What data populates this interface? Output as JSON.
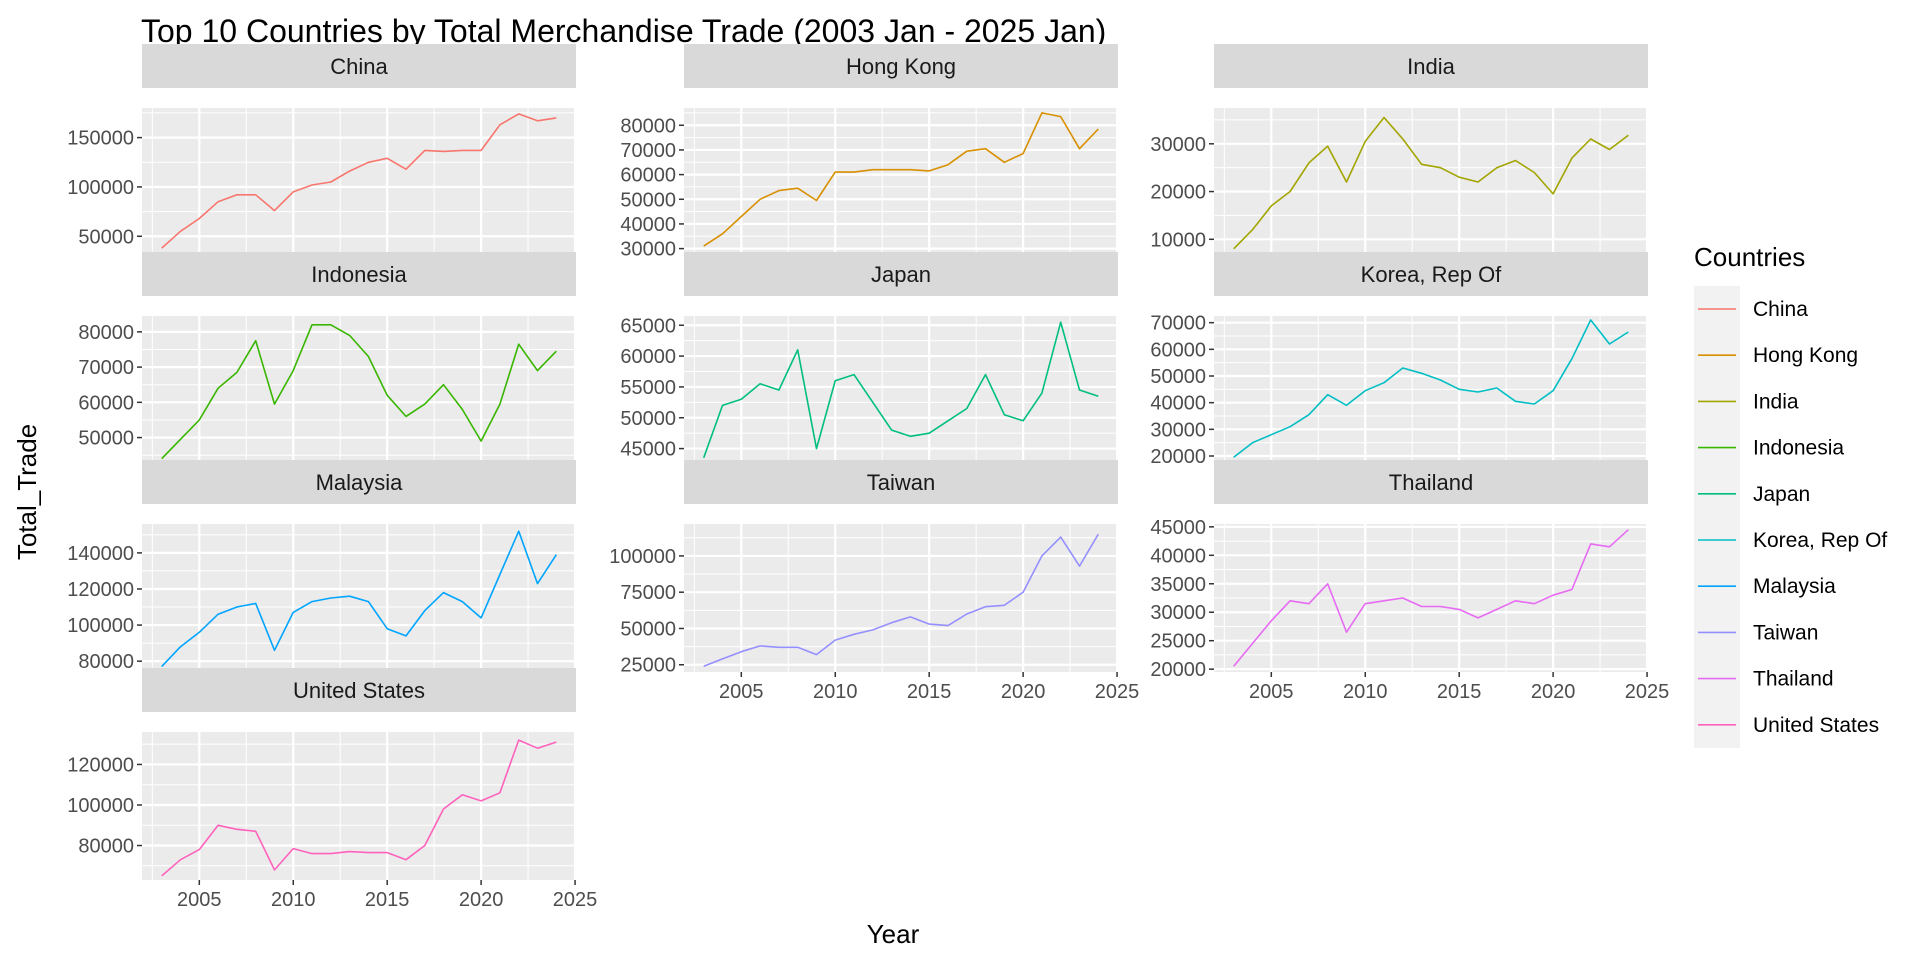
{
  "chart_data": {
    "type": "line",
    "title": "Top 10 Countries by Total Merchandise Trade (2003 Jan - 2025 Jan)",
    "xlabel": "Year",
    "ylabel": "Total_Trade",
    "grid": true,
    "legend_title": "Countries",
    "legend_position": "right",
    "x_ticks": [
      2005,
      2010,
      2015,
      2020,
      2025
    ],
    "x": [
      2003,
      2004,
      2005,
      2006,
      2007,
      2008,
      2009,
      2010,
      2011,
      2012,
      2013,
      2014,
      2015,
      2016,
      2017,
      2018,
      2019,
      2020,
      2021,
      2022,
      2023,
      2024
    ],
    "series": [
      {
        "name": "China",
        "color": "#F8766D",
        "y_ticks": [
          50000,
          100000,
          150000
        ],
        "ylim": [
          30000,
          180000
        ],
        "values": [
          38000,
          55000,
          68000,
          85000,
          92000,
          92000,
          76000,
          95000,
          102000,
          105000,
          116000,
          125000,
          129000,
          118000,
          137000,
          136000,
          137000,
          137000,
          163000,
          174000,
          167000,
          170000
        ]
      },
      {
        "name": "Hong Kong",
        "color": "#D89000",
        "y_ticks": [
          30000,
          40000,
          50000,
          60000,
          70000,
          80000
        ],
        "ylim": [
          27000,
          87000
        ],
        "values": [
          31000,
          36000,
          43000,
          50000,
          53500,
          54500,
          49500,
          61000,
          61000,
          62000,
          62000,
          62000,
          61500,
          64000,
          69500,
          70500,
          65000,
          68500,
          85000,
          83500,
          70500,
          78500
        ]
      },
      {
        "name": "India",
        "color": "#A3A500",
        "y_ticks": [
          10000,
          20000,
          30000
        ],
        "ylim": [
          6500,
          37500
        ],
        "values": [
          8000,
          12000,
          17000,
          20000,
          26000,
          29500,
          22000,
          30500,
          35500,
          31000,
          25700,
          25000,
          23000,
          22000,
          25000,
          26500,
          24000,
          19500,
          27000,
          31000,
          28800,
          31800
        ]
      },
      {
        "name": "Indonesia",
        "color": "#39B600",
        "y_ticks": [
          50000,
          60000,
          70000,
          80000
        ],
        "ylim": [
          42500,
          84500
        ],
        "values": [
          44000,
          49500,
          55000,
          64000,
          68500,
          77500,
          59500,
          69000,
          82000,
          82000,
          79000,
          73000,
          62000,
          56000,
          59500,
          65000,
          58000,
          49000,
          59500,
          76500,
          69000,
          74500
        ]
      },
      {
        "name": "Japan",
        "color": "#00BF7D",
        "y_ticks": [
          45000,
          50000,
          55000,
          60000,
          65000
        ],
        "ylim": [
          42500,
          66500
        ],
        "values": [
          43500,
          52000,
          53000,
          55500,
          54500,
          61000,
          45000,
          56000,
          57000,
          52500,
          48000,
          47000,
          47500,
          49500,
          51500,
          57000,
          50500,
          49500,
          54000,
          65500,
          54500,
          53500
        ]
      },
      {
        "name": "Korea, Rep Of",
        "color": "#00BFC4",
        "y_ticks": [
          20000,
          30000,
          40000,
          50000,
          60000,
          70000
        ],
        "ylim": [
          17000,
          72500
        ],
        "values": [
          19500,
          25000,
          28000,
          31000,
          35500,
          43000,
          39000,
          44500,
          47500,
          53000,
          51000,
          48500,
          45000,
          44000,
          45500,
          40500,
          39500,
          44500,
          56500,
          71000,
          62000,
          66500
        ]
      },
      {
        "name": "Malaysia",
        "color": "#00A5FF",
        "y_ticks": [
          80000,
          100000,
          120000,
          140000
        ],
        "ylim": [
          74000,
          156000
        ],
        "values": [
          77000,
          88000,
          96000,
          106000,
          110000,
          112000,
          86000,
          107000,
          113000,
          115000,
          116000,
          113000,
          98000,
          94000,
          108000,
          118000,
          113000,
          104000,
          128000,
          152000,
          123000,
          139000
        ]
      },
      {
        "name": "Taiwan",
        "color": "#9590FF",
        "y_ticks": [
          25000,
          50000,
          75000,
          100000
        ],
        "ylim": [
          20000,
          122000
        ],
        "values": [
          24000,
          29000,
          34000,
          38000,
          37000,
          37000,
          32000,
          42000,
          46000,
          49000,
          54000,
          58000,
          53000,
          52000,
          60000,
          65000,
          66000,
          75000,
          100000,
          113000,
          93000,
          115000
        ]
      },
      {
        "name": "Thailand",
        "color": "#E76BF3",
        "y_ticks": [
          20000,
          25000,
          30000,
          35000,
          40000,
          45000
        ],
        "ylim": [
          19500,
          45500
        ],
        "values": [
          20500,
          24500,
          28500,
          32000,
          31500,
          35000,
          26500,
          31500,
          32000,
          32500,
          31000,
          31000,
          30500,
          29000,
          30500,
          32000,
          31500,
          33000,
          34000,
          42000,
          41500,
          44500
        ]
      },
      {
        "name": "United States",
        "color": "#FF62BC",
        "y_ticks": [
          80000,
          100000,
          120000
        ],
        "ylim": [
          63000,
          136000
        ],
        "values": [
          65000,
          73000,
          78000,
          90000,
          88000,
          87000,
          68000,
          78500,
          76000,
          76000,
          77000,
          76500,
          76500,
          73000,
          80000,
          98000,
          105000,
          102000,
          106000,
          132000,
          128000,
          131000
        ]
      }
    ]
  }
}
